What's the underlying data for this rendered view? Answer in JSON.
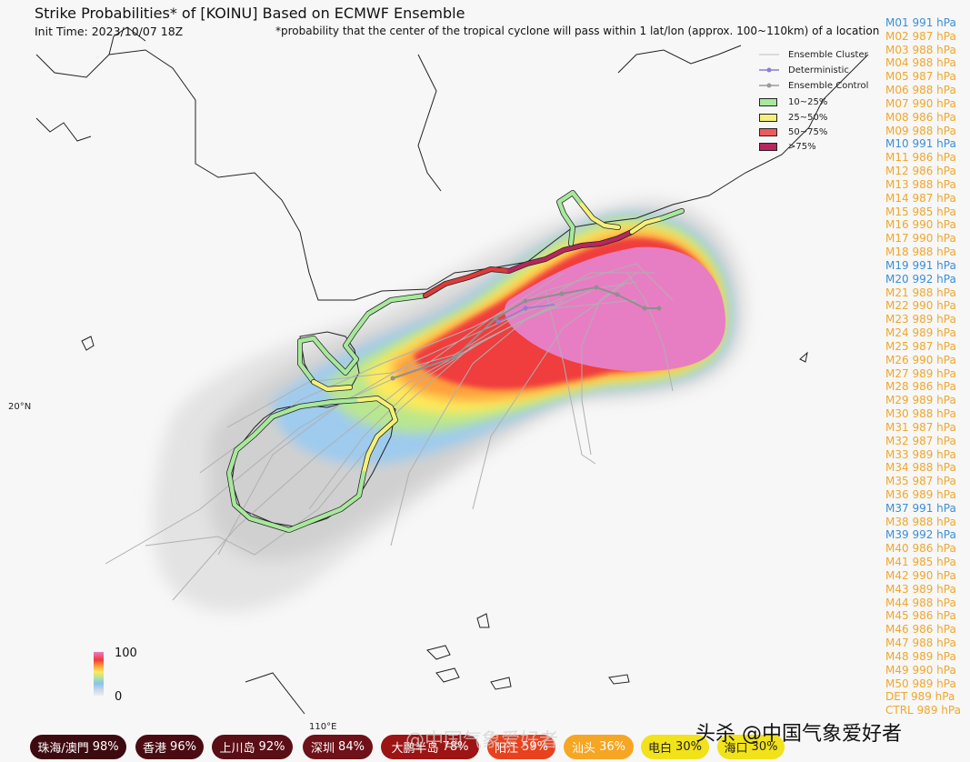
{
  "header": {
    "title": "Strike Probabilities* of [KOINU] Based on ECMWF Ensemble",
    "init_time": "Init Time: 2023/10/07 18Z",
    "footnote": "*probability that the center of the tropical cyclone will pass within 1 lat/lon (approx. 100~110km) of a location"
  },
  "axes": {
    "lat_label": "20°N",
    "lon_label": "110°E"
  },
  "legend": {
    "items": [
      {
        "label": "Ensemble Cluster",
        "kind": "line",
        "color": "#bdbdbd"
      },
      {
        "label": "Deterministic",
        "kind": "line-dot",
        "color": "#8a7fd1"
      },
      {
        "label": "Ensemble Control",
        "kind": "line-dot",
        "color": "#9a9a9a"
      },
      {
        "label": "10~25%",
        "kind": "swatch",
        "color": "#a8e89c"
      },
      {
        "label": "25~50%",
        "kind": "swatch",
        "color": "#f4f07a"
      },
      {
        "label": "50~75%",
        "kind": "swatch",
        "color": "#f25a5a"
      },
      {
        "label": ">75%",
        "kind": "swatch",
        "color": "#b8265e"
      }
    ]
  },
  "colorbar": {
    "max_label": "100",
    "min_label": "0"
  },
  "members": [
    {
      "label": "M01 991 hPa",
      "color": "#3b8fd6"
    },
    {
      "label": "M02 987 hPa",
      "color": "#f0a72a"
    },
    {
      "label": "M03 988 hPa",
      "color": "#f0a72a"
    },
    {
      "label": "M04 988 hPa",
      "color": "#f0a72a"
    },
    {
      "label": "M05 987 hPa",
      "color": "#f0a72a"
    },
    {
      "label": "M06 988 hPa",
      "color": "#f0a72a"
    },
    {
      "label": "M07 990 hPa",
      "color": "#f0a72a"
    },
    {
      "label": "M08 986 hPa",
      "color": "#f0a72a"
    },
    {
      "label": "M09 988 hPa",
      "color": "#f0a72a"
    },
    {
      "label": "M10 991 hPa",
      "color": "#3b8fd6"
    },
    {
      "label": "M11 986 hPa",
      "color": "#f0a72a"
    },
    {
      "label": "M12 986 hPa",
      "color": "#f0a72a"
    },
    {
      "label": "M13 988 hPa",
      "color": "#f0a72a"
    },
    {
      "label": "M14 987 hPa",
      "color": "#f0a72a"
    },
    {
      "label": "M15 985 hPa",
      "color": "#f0a72a"
    },
    {
      "label": "M16 990 hPa",
      "color": "#f0a72a"
    },
    {
      "label": "M17 990 hPa",
      "color": "#f0a72a"
    },
    {
      "label": "M18 988 hPa",
      "color": "#f0a72a"
    },
    {
      "label": "M19 991 hPa",
      "color": "#3b8fd6"
    },
    {
      "label": "M20 992 hPa",
      "color": "#3b8fd6"
    },
    {
      "label": "M21 988 hPa",
      "color": "#f0a72a"
    },
    {
      "label": "M22 990 hPa",
      "color": "#f0a72a"
    },
    {
      "label": "M23 989 hPa",
      "color": "#f0a72a"
    },
    {
      "label": "M24 989 hPa",
      "color": "#f0a72a"
    },
    {
      "label": "M25 987 hPa",
      "color": "#f0a72a"
    },
    {
      "label": "M26 990 hPa",
      "color": "#f0a72a"
    },
    {
      "label": "M27 989 hPa",
      "color": "#f0a72a"
    },
    {
      "label": "M28 986 hPa",
      "color": "#f0a72a"
    },
    {
      "label": "M29 989 hPa",
      "color": "#f0a72a"
    },
    {
      "label": "M30 988 hPa",
      "color": "#f0a72a"
    },
    {
      "label": "M31 987 hPa",
      "color": "#f0a72a"
    },
    {
      "label": "M32 987 hPa",
      "color": "#f0a72a"
    },
    {
      "label": "M33 989 hPa",
      "color": "#f0a72a"
    },
    {
      "label": "M34 988 hPa",
      "color": "#f0a72a"
    },
    {
      "label": "M35 987 hPa",
      "color": "#f0a72a"
    },
    {
      "label": "M36 989 hPa",
      "color": "#f0a72a"
    },
    {
      "label": "M37 991 hPa",
      "color": "#3b8fd6"
    },
    {
      "label": "M38 988 hPa",
      "color": "#f0a72a"
    },
    {
      "label": "M39 992 hPa",
      "color": "#3b8fd6"
    },
    {
      "label": "M40 986 hPa",
      "color": "#f0a72a"
    },
    {
      "label": "M41 985 hPa",
      "color": "#f0a72a"
    },
    {
      "label": "M42 990 hPa",
      "color": "#f0a72a"
    },
    {
      "label": "M43 989 hPa",
      "color": "#f0a72a"
    },
    {
      "label": "M44 988 hPa",
      "color": "#f0a72a"
    },
    {
      "label": "M45 986 hPa",
      "color": "#f0a72a"
    },
    {
      "label": "M46 986 hPa",
      "color": "#f0a72a"
    },
    {
      "label": "M47 988 hPa",
      "color": "#f0a72a"
    },
    {
      "label": "M48 989 hPa",
      "color": "#f0a72a"
    },
    {
      "label": "M49 990 hPa",
      "color": "#f0a72a"
    },
    {
      "label": "M50 989 hPa",
      "color": "#f0a72a"
    },
    {
      "label": "DET 989 hPa",
      "color": "#f0a72a"
    },
    {
      "label": "CTRL 989 hPa",
      "color": "#f0a72a"
    }
  ],
  "cities": [
    {
      "name": "珠海/澳門",
      "value": "98%",
      "bg": "#3d0a10",
      "fg": "#ffffff"
    },
    {
      "name": "香港",
      "value": "96%",
      "bg": "#4a0c12",
      "fg": "#ffffff"
    },
    {
      "name": "上川岛",
      "value": "92%",
      "bg": "#5a0e16",
      "fg": "#ffffff"
    },
    {
      "name": "深圳",
      "value": "84%",
      "bg": "#6e1118",
      "fg": "#ffffff"
    },
    {
      "name": "大鹏半岛",
      "value": "78%",
      "bg": "#9c1414",
      "fg": "#ffffff"
    },
    {
      "name": "阳江",
      "value": "59%",
      "bg": "#e8411d",
      "fg": "#ffffff"
    },
    {
      "name": "汕头",
      "value": "36%",
      "bg": "#f6a623",
      "fg": "#ffffff"
    },
    {
      "name": "电白",
      "value": "30%",
      "bg": "#f2e21a",
      "fg": "#222222"
    },
    {
      "name": "海口",
      "value": "30%",
      "bg": "#f2e21a",
      "fg": "#222222"
    }
  ],
  "watermark": {
    "faint": "@中国气象爱好者",
    "credit": "头杀 @中国气象爱好者"
  },
  "colors": {
    "prob_max": "#e87fc5",
    "coast": "#222222",
    "track": "#9a9a9a",
    "deterministic": "#8a7fd1"
  }
}
